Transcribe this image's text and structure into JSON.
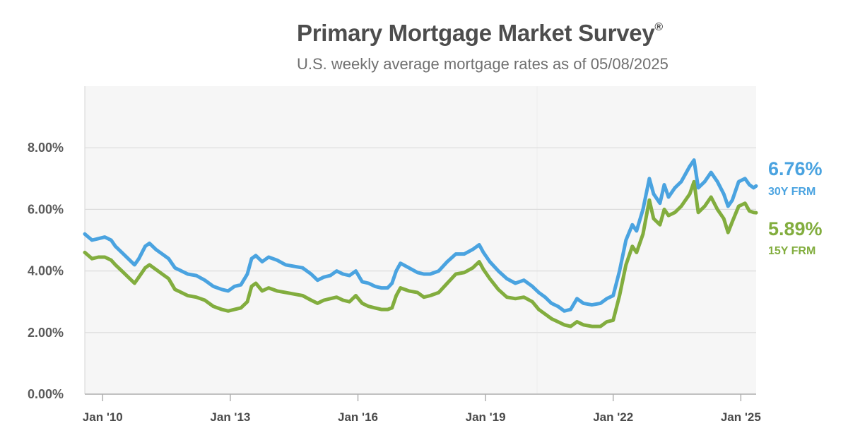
{
  "title": "Primary Mortgage Market Survey",
  "title_mark": "®",
  "subtitle": "U.S. weekly average mortgage rates as of 05/08/2025",
  "chart_data": {
    "type": "line",
    "title": "Primary Mortgage Market Survey®",
    "subtitle": "U.S. weekly average mortgage rates as of 05/08/2025",
    "xlim": [
      2009.58,
      2025.36
    ],
    "ylim": [
      0,
      10
    ],
    "y_ticks": [
      0,
      2,
      4,
      6,
      8
    ],
    "y_tick_labels": [
      "0.00%",
      "2.00%",
      "4.00%",
      "6.00%",
      "8.00%"
    ],
    "x_ticks": [
      2010,
      2013,
      2016,
      2019,
      2022,
      2025
    ],
    "x_tick_labels": [
      "Jan '10",
      "Jan '13",
      "Jan '16",
      "Jan '19",
      "Jan '22",
      "Jan '25"
    ],
    "grid": true,
    "legend": "right (end labels)",
    "series": [
      {
        "name": "30Y FRM",
        "color": "#4aa3e0",
        "last_label": "6.76%",
        "x": [
          2009.58,
          2009.75,
          2009.9,
          2010.05,
          2010.2,
          2010.3,
          2010.45,
          2010.6,
          2010.75,
          2010.85,
          2011.0,
          2011.1,
          2011.25,
          2011.4,
          2011.55,
          2011.7,
          2011.85,
          2012.0,
          2012.2,
          2012.4,
          2012.6,
          2012.8,
          2012.95,
          2013.1,
          2013.25,
          2013.4,
          2013.5,
          2013.6,
          2013.75,
          2013.9,
          2014.1,
          2014.3,
          2014.5,
          2014.7,
          2014.9,
          2015.05,
          2015.2,
          2015.35,
          2015.5,
          2015.65,
          2015.8,
          2015.95,
          2016.1,
          2016.25,
          2016.4,
          2016.55,
          2016.7,
          2016.8,
          2016.9,
          2017.0,
          2017.2,
          2017.4,
          2017.55,
          2017.7,
          2017.9,
          2018.1,
          2018.3,
          2018.5,
          2018.7,
          2018.85,
          2018.95,
          2019.1,
          2019.3,
          2019.5,
          2019.7,
          2019.9,
          2020.1,
          2020.25,
          2020.4,
          2020.55,
          2020.7,
          2020.85,
          2021.0,
          2021.15,
          2021.3,
          2021.5,
          2021.7,
          2021.85,
          2022.0,
          2022.15,
          2022.3,
          2022.45,
          2022.55,
          2022.7,
          2022.85,
          2022.95,
          2023.1,
          2023.2,
          2023.3,
          2023.45,
          2023.6,
          2023.8,
          2023.9,
          2024.0,
          2024.15,
          2024.3,
          2024.45,
          2024.6,
          2024.7,
          2024.8,
          2024.95,
          2025.1,
          2025.2,
          2025.3,
          2025.36
        ],
        "values": [
          5.2,
          5.0,
          5.05,
          5.1,
          5.0,
          4.8,
          4.6,
          4.4,
          4.2,
          4.4,
          4.8,
          4.9,
          4.7,
          4.55,
          4.4,
          4.1,
          4.0,
          3.9,
          3.85,
          3.7,
          3.5,
          3.4,
          3.35,
          3.5,
          3.55,
          3.9,
          4.4,
          4.5,
          4.3,
          4.45,
          4.35,
          4.2,
          4.15,
          4.1,
          3.9,
          3.7,
          3.8,
          3.85,
          4.0,
          3.9,
          3.85,
          4.0,
          3.65,
          3.6,
          3.5,
          3.45,
          3.45,
          3.6,
          4.0,
          4.25,
          4.1,
          3.95,
          3.9,
          3.9,
          4.0,
          4.3,
          4.55,
          4.55,
          4.7,
          4.85,
          4.6,
          4.3,
          4.0,
          3.75,
          3.6,
          3.7,
          3.5,
          3.3,
          3.15,
          2.95,
          2.85,
          2.7,
          2.75,
          3.1,
          2.95,
          2.9,
          2.95,
          3.1,
          3.2,
          4.0,
          5.0,
          5.5,
          5.3,
          6.0,
          7.0,
          6.5,
          6.2,
          6.8,
          6.4,
          6.7,
          6.9,
          7.4,
          7.6,
          6.7,
          6.9,
          7.2,
          6.9,
          6.5,
          6.1,
          6.3,
          6.9,
          7.0,
          6.8,
          6.7,
          6.76
        ]
      },
      {
        "name": "15Y FRM",
        "color": "#82ad3e",
        "last_label": "5.89%",
        "x": [
          2009.58,
          2009.75,
          2009.9,
          2010.05,
          2010.2,
          2010.3,
          2010.45,
          2010.6,
          2010.75,
          2010.85,
          2011.0,
          2011.1,
          2011.25,
          2011.4,
          2011.55,
          2011.7,
          2011.85,
          2012.0,
          2012.2,
          2012.4,
          2012.6,
          2012.8,
          2012.95,
          2013.1,
          2013.25,
          2013.4,
          2013.5,
          2013.6,
          2013.75,
          2013.9,
          2014.1,
          2014.3,
          2014.5,
          2014.7,
          2014.9,
          2015.05,
          2015.2,
          2015.35,
          2015.5,
          2015.65,
          2015.8,
          2015.95,
          2016.1,
          2016.25,
          2016.4,
          2016.55,
          2016.7,
          2016.8,
          2016.9,
          2017.0,
          2017.2,
          2017.4,
          2017.55,
          2017.7,
          2017.9,
          2018.1,
          2018.3,
          2018.5,
          2018.7,
          2018.85,
          2018.95,
          2019.1,
          2019.3,
          2019.5,
          2019.7,
          2019.9,
          2020.1,
          2020.25,
          2020.4,
          2020.55,
          2020.7,
          2020.85,
          2021.0,
          2021.15,
          2021.3,
          2021.5,
          2021.7,
          2021.85,
          2022.0,
          2022.15,
          2022.3,
          2022.45,
          2022.55,
          2022.7,
          2022.85,
          2022.95,
          2023.1,
          2023.2,
          2023.3,
          2023.45,
          2023.6,
          2023.8,
          2023.9,
          2024.0,
          2024.15,
          2024.3,
          2024.45,
          2024.6,
          2024.7,
          2024.8,
          2024.95,
          2025.1,
          2025.2,
          2025.3,
          2025.36
        ],
        "values": [
          4.6,
          4.4,
          4.45,
          4.45,
          4.35,
          4.2,
          4.0,
          3.8,
          3.6,
          3.8,
          4.1,
          4.2,
          4.05,
          3.9,
          3.75,
          3.4,
          3.3,
          3.2,
          3.15,
          3.05,
          2.85,
          2.75,
          2.7,
          2.75,
          2.8,
          3.0,
          3.5,
          3.6,
          3.35,
          3.45,
          3.35,
          3.3,
          3.25,
          3.2,
          3.05,
          2.95,
          3.05,
          3.1,
          3.15,
          3.05,
          3.0,
          3.2,
          2.95,
          2.85,
          2.8,
          2.75,
          2.75,
          2.8,
          3.2,
          3.45,
          3.35,
          3.3,
          3.15,
          3.2,
          3.3,
          3.6,
          3.9,
          3.95,
          4.1,
          4.3,
          4.05,
          3.75,
          3.4,
          3.15,
          3.1,
          3.15,
          3.0,
          2.75,
          2.6,
          2.45,
          2.35,
          2.25,
          2.2,
          2.35,
          2.25,
          2.2,
          2.2,
          2.35,
          2.4,
          3.2,
          4.2,
          4.8,
          4.6,
          5.2,
          6.3,
          5.7,
          5.5,
          6.0,
          5.8,
          5.9,
          6.1,
          6.5,
          6.9,
          5.9,
          6.1,
          6.4,
          6.0,
          5.7,
          5.25,
          5.6,
          6.1,
          6.2,
          5.95,
          5.9,
          5.89
        ]
      }
    ]
  }
}
